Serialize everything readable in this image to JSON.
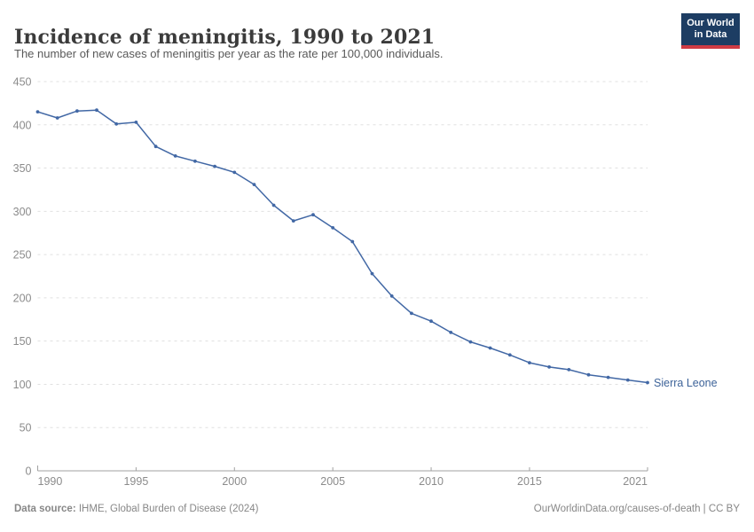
{
  "header": {
    "title": "Incidence of meningitis, 1990 to 2021",
    "subtitle": "The number of new cases of meningitis per year as the rate per 100,000 individuals.",
    "logo": {
      "line1": "Our World",
      "line2": "in Data",
      "bg_color": "#1d3d63",
      "accent_color": "#cf3b44"
    }
  },
  "chart_data": {
    "type": "line",
    "title": "Incidence of meningitis, 1990 to 2021",
    "xlabel": "",
    "ylabel": "",
    "xlim": [
      1990,
      2021
    ],
    "ylim": [
      0,
      450
    ],
    "xticks": [
      1990,
      1995,
      2000,
      2005,
      2010,
      2015,
      2021
    ],
    "yticks": [
      0,
      50,
      100,
      150,
      200,
      250,
      300,
      350,
      400,
      450
    ],
    "grid": true,
    "legend_position": "end-of-line-label",
    "x": [
      1990,
      1991,
      1992,
      1993,
      1994,
      1995,
      1996,
      1997,
      1998,
      1999,
      2000,
      2001,
      2002,
      2003,
      2004,
      2005,
      2006,
      2007,
      2008,
      2009,
      2010,
      2011,
      2012,
      2013,
      2014,
      2015,
      2016,
      2017,
      2018,
      2019,
      2020,
      2021
    ],
    "series": [
      {
        "name": "Sierra Leone",
        "color": "#4268a5",
        "label_color": "#3d6399",
        "values": [
          415,
          408,
          416,
          417,
          401,
          403,
          375,
          364,
          358,
          352,
          345,
          331,
          307,
          289,
          296,
          281,
          265,
          228,
          202,
          182,
          173,
          160,
          149,
          142,
          134,
          125,
          120,
          117,
          111,
          108,
          105,
          102
        ]
      }
    ],
    "style": {
      "grid_color": "#e0e0e0",
      "axis_color": "#a1a1a1",
      "tick_text_color": "#8b8b8b",
      "tick_font_size": 12.5
    }
  },
  "footer": {
    "datasource_label": "Data source:",
    "datasource_value": " IHME, Global Burden of Disease (2024)",
    "credit": "OurWorldinData.org/causes-of-death | CC BY"
  }
}
